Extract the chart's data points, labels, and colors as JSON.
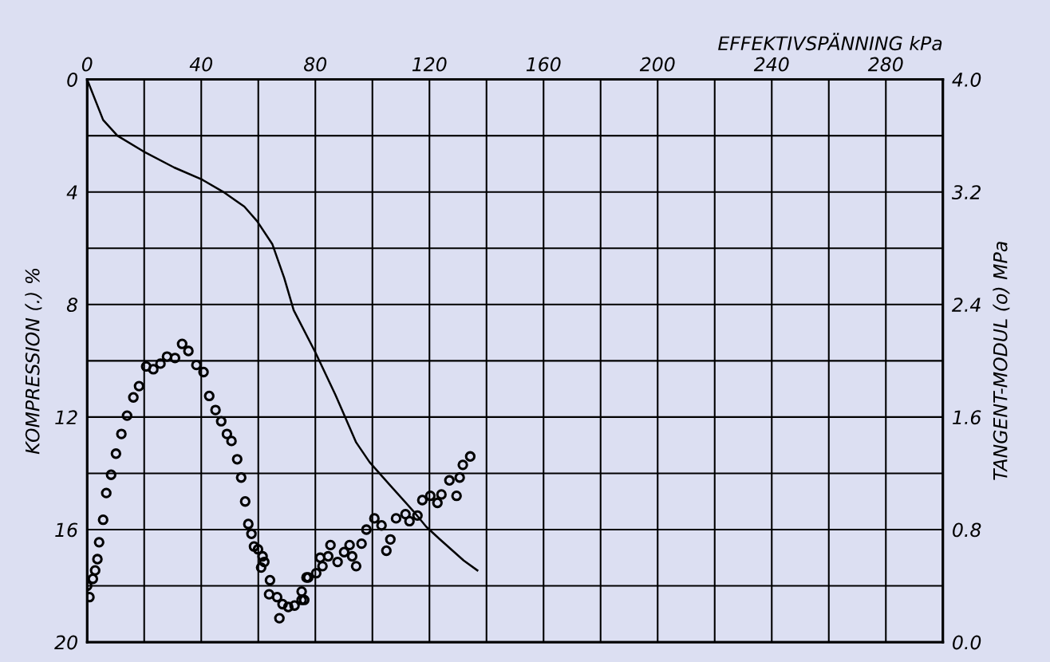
{
  "chart_data": {
    "type": "line",
    "xlabel": "EFFEKTIVSPÄNNING kPa",
    "ylabel": "KOMPRESSION (.) %",
    "y2label": "TANGENT-MODUL (o) MPa",
    "xlim": [
      0,
      300
    ],
    "xticks": [
      0,
      {
        "value": 20,
        "label": null
      },
      40,
      {
        "value": 60,
        "label": null
      },
      80,
      {
        "value": 100,
        "label": null
      },
      120,
      {
        "value": 140,
        "label": null
      },
      160,
      {
        "value": 180,
        "label": null
      },
      200,
      {
        "value": 220,
        "label": null
      },
      240,
      {
        "value": 260,
        "label": null
      },
      280,
      {
        "value": 300,
        "label": null
      }
    ],
    "ylim": [
      20,
      0
    ],
    "yticks": [
      0,
      {
        "value": 2,
        "label": null
      },
      4,
      {
        "value": 6,
        "label": null
      },
      8,
      {
        "value": 10,
        "label": null
      },
      12,
      {
        "value": 14,
        "label": null
      },
      16,
      {
        "value": 18,
        "label": null
      },
      20
    ],
    "y2lim": [
      0.0,
      4.0
    ],
    "y2ticks": [
      {
        "value": 0.0,
        "label": "0.0"
      },
      {
        "value": 0.4,
        "label": null
      },
      {
        "value": 0.8,
        "label": "0.8"
      },
      {
        "value": 1.2,
        "label": null
      },
      {
        "value": 1.6,
        "label": "1.6"
      },
      {
        "value": 2.0,
        "label": null
      },
      {
        "value": 2.4,
        "label": "2.4"
      },
      {
        "value": 2.8,
        "label": null
      },
      {
        "value": 3.2,
        "label": "3.2"
      },
      {
        "value": 3.6,
        "label": null
      },
      {
        "value": 4.0,
        "label": "4.0"
      }
    ],
    "grid": true,
    "series": [
      {
        "axis": "y",
        "color": "#000000",
        "marker": "none",
        "line_style": "solid",
        "x": [
          0,
          5.6,
          10.6,
          19.6,
          30.5,
          40.3,
          47.6,
          55.1,
          59.6,
          64.9,
          69.1,
          72.4,
          80,
          87,
          94.3,
          99,
          106,
          114.4,
          118.9,
          123.6,
          132,
          136.8
        ],
        "values": [
          0,
          1.44,
          2.0,
          2.55,
          3.13,
          3.56,
          3.99,
          4.52,
          5.04,
          5.85,
          7.06,
          8.2,
          9.7,
          11.2,
          12.9,
          13.6,
          14.4,
          15.35,
          15.9,
          16.34,
          17.1,
          17.45
        ]
      },
      {
        "type": "scatter",
        "axis": "y2",
        "color": "#000000",
        "marker": "circle",
        "x": [
          0,
          0.8,
          2.0,
          2.8,
          3.6,
          4.2,
          5.6,
          6.7,
          8.4,
          10.1,
          12.0,
          14.0,
          16.2,
          18.2,
          20.7,
          23.2,
          25.7,
          28.0,
          30.8,
          33.3,
          35.5,
          38.3,
          40.8,
          42.8,
          45.0,
          47.0,
          49.0,
          50.6,
          52.6,
          54.0,
          55.4,
          56.5,
          57.6,
          58.5,
          59.9,
          61.5,
          62.1,
          61.0,
          64.1,
          63.8,
          66.6,
          68.5,
          67.4,
          70.5,
          72.7,
          75.2,
          76.9,
          75.2,
          76.1,
          77.5,
          80.3,
          82.5,
          81.7,
          85.3,
          84.5,
          87.8,
          90.1,
          92.0,
          92.9,
          94.3,
          96.2,
          97.9,
          100.7,
          103.2,
          104.9,
          106.3,
          108.3,
          111.6,
          113.0,
          115.8,
          117.5,
          120.3,
          122.8,
          124.2,
          127.0,
          130.6,
          129.5,
          131.7,
          134.3
        ],
        "values": [
          0.4,
          0.32,
          0.45,
          0.51,
          0.59,
          0.71,
          0.87,
          1.06,
          1.19,
          1.34,
          1.48,
          1.61,
          1.74,
          1.82,
          1.96,
          1.94,
          1.98,
          2.03,
          2.02,
          2.12,
          2.07,
          1.97,
          1.92,
          1.75,
          1.65,
          1.57,
          1.48,
          1.43,
          1.3,
          1.17,
          1.0,
          0.84,
          0.77,
          0.68,
          0.66,
          0.61,
          0.57,
          0.53,
          0.44,
          0.34,
          0.32,
          0.27,
          0.17,
          0.25,
          0.26,
          0.3,
          0.46,
          0.36,
          0.3,
          0.46,
          0.49,
          0.54,
          0.6,
          0.69,
          0.61,
          0.57,
          0.64,
          0.69,
          0.61,
          0.54,
          0.7,
          0.8,
          0.88,
          0.83,
          0.65,
          0.73,
          0.88,
          0.91,
          0.86,
          0.9,
          1.01,
          1.04,
          0.99,
          1.05,
          1.15,
          1.17,
          1.04,
          1.26,
          1.32
        ]
      }
    ]
  }
}
